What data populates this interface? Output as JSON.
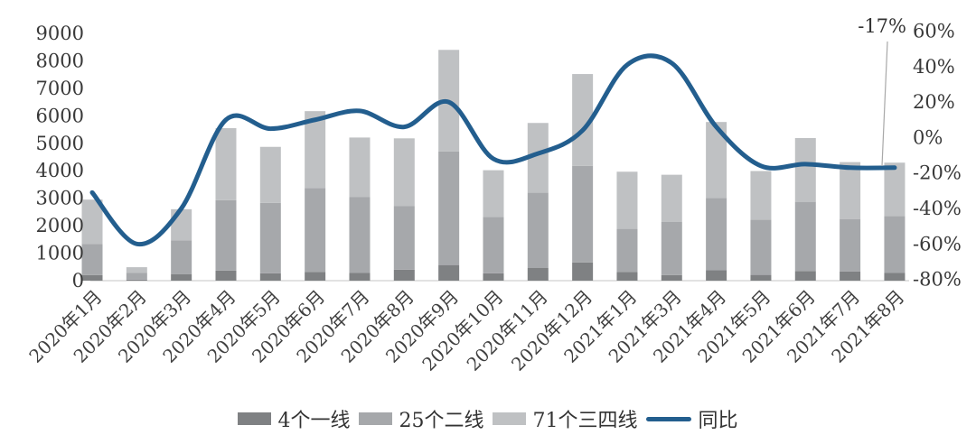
{
  "chart_data": {
    "type": "bar",
    "subtype": "stacked-bar-with-line-combo",
    "title": "",
    "categories": [
      "2020年1月",
      "2020年2月",
      "2020年3月",
      "2020年4月",
      "2020年5月",
      "2020年6月",
      "2020年7月",
      "2020年8月",
      "2020年9月",
      "2020年10月",
      "2020年11月",
      "2020年12月",
      "2021年1月",
      "2021年3月",
      "2021年4月",
      "2021年5月",
      "2021年6月",
      "2021年7月",
      "2021年8月"
    ],
    "series": [
      {
        "name": "4个一线",
        "type": "bar",
        "stacked": true,
        "color": "#7f8183",
        "values": [
          200,
          40,
          240,
          370,
          270,
          320,
          290,
          400,
          570,
          270,
          460,
          660,
          320,
          200,
          380,
          210,
          350,
          330,
          280
        ]
      },
      {
        "name": "25个二线",
        "type": "bar",
        "stacked": true,
        "color": "#a6a8ab",
        "values": [
          1140,
          250,
          1230,
          2560,
          2560,
          3055,
          2760,
          2310,
          4130,
          2050,
          2740,
          3520,
          1565,
          1935,
          2630,
          2005,
          2520,
          1915,
          2075
        ]
      },
      {
        "name": "71个三四线",
        "type": "bar",
        "stacked": true,
        "color": "#bfc1c3",
        "values": [
          1610,
          200,
          1130,
          2620,
          2040,
          2795,
          2160,
          2470,
          3700,
          1700,
          2540,
          3340,
          2080,
          1720,
          2765,
          1775,
          2320,
          2070,
          1940
        ]
      }
    ],
    "stack_totals": [
      2950,
      490,
      2600,
      5550,
      4870,
      6170,
      5210,
      5180,
      8400,
      4020,
      5740,
      7520,
      3965,
      3855,
      5775,
      3990,
      5190,
      4315,
      4295
    ],
    "line": {
      "name": "同比",
      "axis": "right",
      "color": "#235e8e",
      "smooth": true,
      "values_pct": [
        -31,
        -60,
        -40,
        10,
        5,
        10,
        15,
        6,
        20,
        -12,
        -9,
        4,
        41,
        42,
        6,
        -16,
        -15,
        -17,
        -17
      ]
    },
    "left_axis": {
      "min": 0,
      "max": 9000,
      "step": 1000,
      "tick_labels": [
        "0",
        "1000",
        "2000",
        "3000",
        "4000",
        "5000",
        "6000",
        "7000",
        "8000",
        "9000"
      ]
    },
    "right_axis": {
      "min": -80,
      "max": 60,
      "step": 20,
      "tick_labels": [
        "-80%",
        "-60%",
        "-40%",
        "-20%",
        "0%",
        "20%",
        "40%",
        "60%"
      ]
    },
    "annotation": {
      "text": "-17%",
      "callout_to_category": "2021年8月"
    },
    "legend": {
      "position": "bottom",
      "entries": [
        "4个一线",
        "25个二线",
        "71个三四线",
        "同比"
      ]
    },
    "grid": "off",
    "background_color": "#ffffff",
    "axis_line_color": "#d9d9d9",
    "callout_line_color": "#a8a8a8",
    "xlabel": "",
    "ylabel": ""
  }
}
